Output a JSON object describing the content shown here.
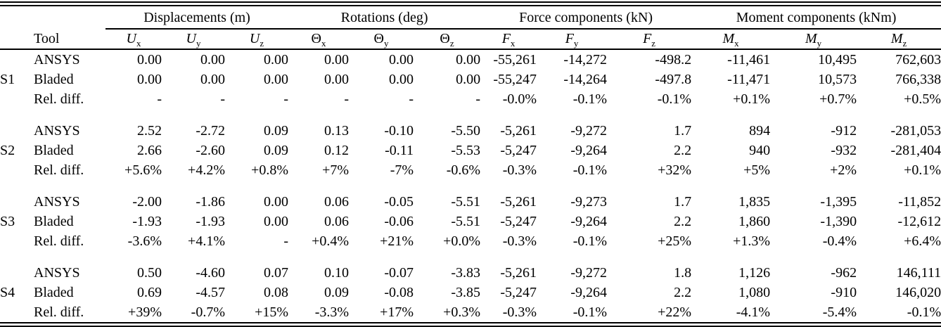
{
  "table": {
    "groups": [
      {
        "label": "Displacements (m)"
      },
      {
        "label": "Rotations (deg)"
      },
      {
        "label": "Force components (kN)"
      },
      {
        "label": "Moment components (kNm)"
      }
    ],
    "tool_header": "Tool",
    "columns": [
      {
        "base": "U",
        "sub": "x"
      },
      {
        "base": "U",
        "sub": "y"
      },
      {
        "base": "U",
        "sub": "z"
      },
      {
        "base": "Θ",
        "sub": "x"
      },
      {
        "base": "Θ",
        "sub": "y"
      },
      {
        "base": "Θ",
        "sub": "z"
      },
      {
        "base": "F",
        "sub": "x"
      },
      {
        "base": "F",
        "sub": "y"
      },
      {
        "base": "F",
        "sub": "z"
      },
      {
        "base": "M",
        "sub": "x"
      },
      {
        "base": "M",
        "sub": "y"
      },
      {
        "base": "M",
        "sub": "z"
      }
    ],
    "sections": [
      {
        "id": "S1",
        "rows": [
          {
            "tool": "ANSYS",
            "values": [
              "0.00",
              "0.00",
              "0.00",
              "0.00",
              "0.00",
              "0.00",
              "-55,261",
              "-14,272",
              "-498.2",
              "-11,461",
              "10,495",
              "762,603"
            ]
          },
          {
            "tool": "Bladed",
            "values": [
              "0.00",
              "0.00",
              "0.00",
              "0.00",
              "0.00",
              "0.00",
              "-55,247",
              "-14,264",
              "-497.8",
              "-11,471",
              "10,573",
              "766,338"
            ]
          },
          {
            "tool": "Rel. diff.",
            "values": [
              "-",
              "-",
              "-",
              "-",
              "-",
              "-",
              "-0.0%",
              "-0.1%",
              "-0.1%",
              "+0.1%",
              "+0.7%",
              "+0.5%"
            ]
          }
        ]
      },
      {
        "id": "S2",
        "rows": [
          {
            "tool": "ANSYS",
            "values": [
              "2.52",
              "-2.72",
              "0.09",
              "0.13",
              "-0.10",
              "-5.50",
              "-5,261",
              "-9,272",
              "1.7",
              "894",
              "-912",
              "-281,053"
            ]
          },
          {
            "tool": "Bladed",
            "values": [
              "2.66",
              "-2.60",
              "0.09",
              "0.12",
              "-0.11",
              "-5.53",
              "-5,247",
              "-9,264",
              "2.2",
              "940",
              "-932",
              "-281,404"
            ]
          },
          {
            "tool": "Rel. diff.",
            "values": [
              "+5.6%",
              "+4.2%",
              "+0.8%",
              "+7%",
              "-7%",
              "-0.6%",
              "-0.3%",
              "-0.1%",
              "+32%",
              "+5%",
              "+2%",
              "+0.1%"
            ]
          }
        ]
      },
      {
        "id": "S3",
        "rows": [
          {
            "tool": "ANSYS",
            "values": [
              "-2.00",
              "-1.86",
              "0.00",
              "0.06",
              "-0.05",
              "-5.51",
              "-5,261",
              "-9,273",
              "1.7",
              "1,835",
              "-1,395",
              "-11,852"
            ]
          },
          {
            "tool": "Bladed",
            "values": [
              "-1.93",
              "-1.93",
              "0.00",
              "0.06",
              "-0.06",
              "-5.51",
              "-5,247",
              "-9,264",
              "2.2",
              "1,860",
              "-1,390",
              "-12,612"
            ]
          },
          {
            "tool": "Rel. diff.",
            "values": [
              "-3.6%",
              "+4.1%",
              "-",
              "+0.4%",
              "+21%",
              "+0.0%",
              "-0.3%",
              "-0.1%",
              "+25%",
              "+1.3%",
              "-0.4%",
              "+6.4%"
            ]
          }
        ]
      },
      {
        "id": "S4",
        "rows": [
          {
            "tool": "ANSYS",
            "values": [
              "0.50",
              "-4.60",
              "0.07",
              "0.10",
              "-0.07",
              "-3.83",
              "-5,261",
              "-9,272",
              "1.8",
              "1,126",
              "-962",
              "146,111"
            ]
          },
          {
            "tool": "Bladed",
            "values": [
              "0.69",
              "-4.57",
              "0.08",
              "0.09",
              "-0.08",
              "-3.85",
              "-5,247",
              "-9,264",
              "2.2",
              "1,080",
              "-910",
              "146,020"
            ]
          },
          {
            "tool": "Rel. diff.",
            "values": [
              "+39%",
              "-0.7%",
              "+15%",
              "-3.3%",
              "+17%",
              "+0.3%",
              "-0.3%",
              "-0.1%",
              "+22%",
              "-4.1%",
              "-5.4%",
              "-0.1%"
            ]
          }
        ]
      }
    ]
  }
}
